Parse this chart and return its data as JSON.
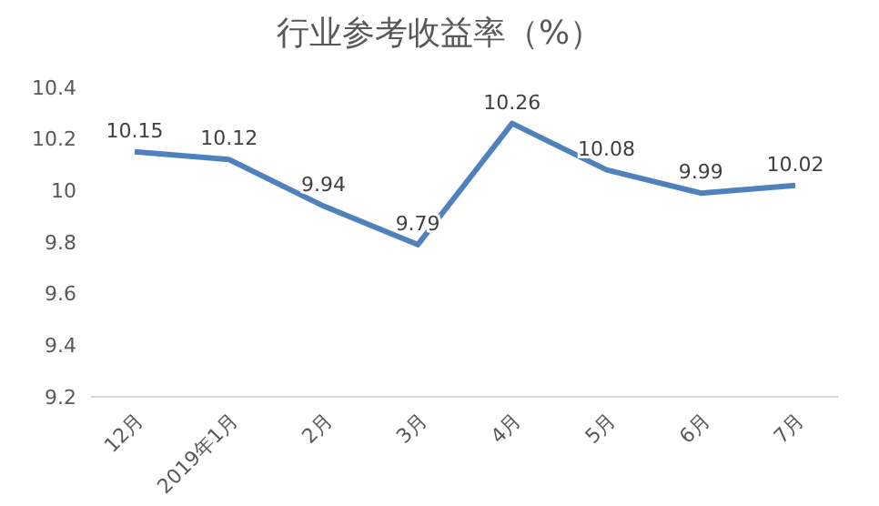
{
  "chart_data": {
    "type": "line",
    "title": "行业参考收益率（%）",
    "categories": [
      "12月",
      "2019年1月",
      "2月",
      "3月",
      "4月",
      "5月",
      "6月",
      "7月"
    ],
    "series": [
      {
        "color": "#4f81bd",
        "values": [
          10.15,
          10.12,
          9.94,
          9.79,
          10.26,
          10.08,
          9.99,
          10.02
        ]
      }
    ],
    "ylim": [
      9.2,
      10.4
    ],
    "yticks": [
      9.2,
      9.4,
      9.6,
      9.8,
      10,
      10.2,
      10.4
    ],
    "grid": false,
    "legend": false,
    "marker": "none",
    "line_style": "solid",
    "data_labels": true
  }
}
